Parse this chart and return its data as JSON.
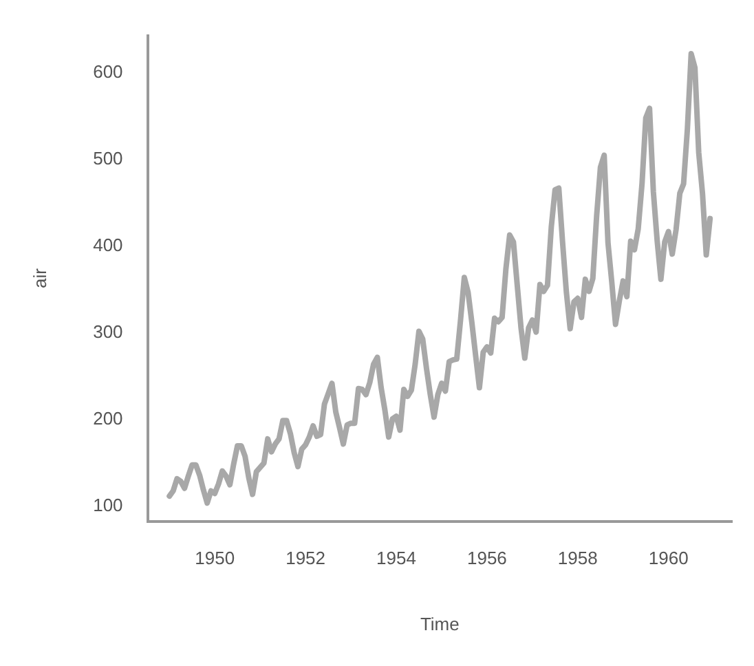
{
  "chart_data": {
    "type": "line",
    "xlabel": "Time",
    "ylabel": "air",
    "x": [
      1949,
      1949.083,
      1949.167,
      1949.25,
      1949.333,
      1949.417,
      1949.5,
      1949.583,
      1949.667,
      1949.75,
      1949.833,
      1949.917,
      1950,
      1950.083,
      1950.167,
      1950.25,
      1950.333,
      1950.417,
      1950.5,
      1950.583,
      1950.667,
      1950.75,
      1950.833,
      1950.917,
      1951,
      1951.083,
      1951.167,
      1951.25,
      1951.333,
      1951.417,
      1951.5,
      1951.583,
      1951.667,
      1951.75,
      1951.833,
      1951.917,
      1952,
      1952.083,
      1952.167,
      1952.25,
      1952.333,
      1952.417,
      1952.5,
      1952.583,
      1952.667,
      1952.75,
      1952.833,
      1952.917,
      1953,
      1953.083,
      1953.167,
      1953.25,
      1953.333,
      1953.417,
      1953.5,
      1953.583,
      1953.667,
      1953.75,
      1953.833,
      1953.917,
      1954,
      1954.083,
      1954.167,
      1954.25,
      1954.333,
      1954.417,
      1954.5,
      1954.583,
      1954.667,
      1954.75,
      1954.833,
      1954.917,
      1955,
      1955.083,
      1955.167,
      1955.25,
      1955.333,
      1955.417,
      1955.5,
      1955.583,
      1955.667,
      1955.75,
      1955.833,
      1955.917,
      1956,
      1956.083,
      1956.167,
      1956.25,
      1956.333,
      1956.417,
      1956.5,
      1956.583,
      1956.667,
      1956.75,
      1956.833,
      1956.917,
      1957,
      1957.083,
      1957.167,
      1957.25,
      1957.333,
      1957.417,
      1957.5,
      1957.583,
      1957.667,
      1957.75,
      1957.833,
      1957.917,
      1958,
      1958.083,
      1958.167,
      1958.25,
      1958.333,
      1958.417,
      1958.5,
      1958.583,
      1958.667,
      1958.75,
      1958.833,
      1958.917,
      1959,
      1959.083,
      1959.167,
      1959.25,
      1959.333,
      1959.417,
      1959.5,
      1959.583,
      1959.667,
      1959.75,
      1959.833,
      1959.917,
      1960,
      1960.083,
      1960.167,
      1960.25,
      1960.333,
      1960.417,
      1960.5,
      1960.583,
      1960.667,
      1960.75,
      1960.833,
      1960.917
    ],
    "series": [
      {
        "color": "#a8a8a8",
        "values": [
          112,
          118,
          132,
          129,
          121,
          135,
          148,
          148,
          136,
          119,
          104,
          118,
          115,
          126,
          141,
          135,
          125,
          149,
          170,
          170,
          158,
          133,
          114,
          140,
          145,
          150,
          178,
          163,
          172,
          178,
          199,
          199,
          184,
          162,
          146,
          166,
          171,
          180,
          193,
          181,
          183,
          218,
          230,
          242,
          209,
          191,
          172,
          194,
          196,
          196,
          236,
          235,
          229,
          243,
          264,
          272,
          237,
          211,
          180,
          201,
          204,
          188,
          235,
          227,
          234,
          264,
          302,
          293,
          259,
          229,
          203,
          229,
          242,
          233,
          267,
          269,
          270,
          315,
          364,
          347,
          312,
          274,
          237,
          278,
          284,
          277,
          317,
          313,
          318,
          374,
          413,
          405,
          355,
          306,
          271,
          306,
          315,
          301,
          356,
          348,
          355,
          422,
          465,
          467,
          404,
          347,
          305,
          336,
          340,
          318,
          362,
          348,
          363,
          435,
          491,
          505,
          404,
          359,
          310,
          337,
          360,
          342,
          406,
          396,
          420,
          472,
          548,
          559,
          463,
          407,
          362,
          405,
          417,
          391,
          419,
          461,
          472,
          535,
          622,
          606,
          508,
          461,
          390,
          432
        ]
      }
    ],
    "xlim": [
      1948.52,
      1961.4
    ],
    "xticks": [
      1950,
      1952,
      1954,
      1956,
      1958,
      1960
    ],
    "ylim": [
      83,
      643
    ],
    "yticks": [
      100,
      200,
      300,
      400,
      500,
      600
    ],
    "grid": false,
    "legend": false,
    "marker": "none",
    "line_style": "solid"
  }
}
